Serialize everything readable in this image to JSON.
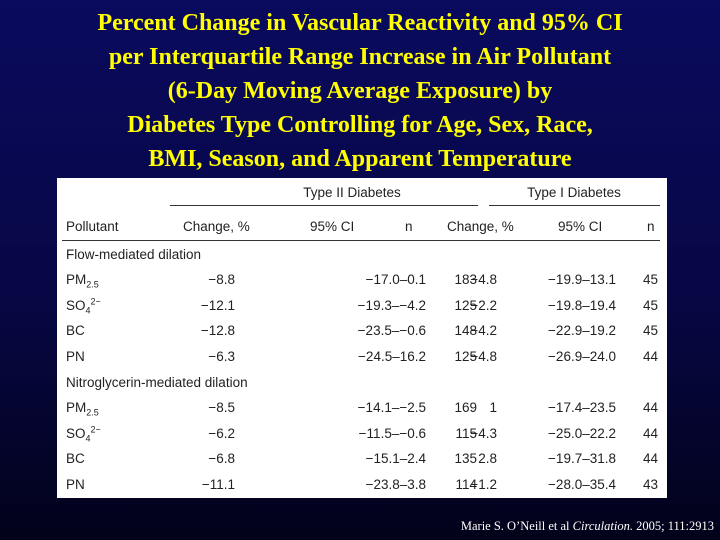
{
  "title_lines": [
    "Percent Change in Vascular Reactivity and 95% CI",
    "per Interquartile Range Increase in Air Pollutant",
    "(6-Day Moving Average Exposure) by",
    "Diabetes Type Controlling for Age, Sex, Race,",
    "BMI, Season, and Apparent Temperature"
  ],
  "table": {
    "group_headers": {
      "type2": "Type II Diabetes",
      "type1": "Type I Diabetes"
    },
    "columns": {
      "pollutant": "Pollutant",
      "change": "Change, %",
      "ci": "95% CI",
      "n": "n",
      "change2": "Change, %",
      "ci2": "95% CI",
      "n2": "n"
    },
    "sections": [
      {
        "label": "Flow-mediated dilation",
        "rows": [
          {
            "base": "PM",
            "sub": "2.5",
            "sup": "",
            "t2_change": "−8.8",
            "t2_ci": "−17.0–0.1",
            "t2_n": "183",
            "t1_change": "−4.8",
            "t1_ci": "−19.9–13.1",
            "t1_n": "45"
          },
          {
            "base": "SO",
            "sub": "4",
            "sup": "2−",
            "t2_change": "−12.1",
            "t2_ci": "−19.3–−4.2",
            "t2_n": "125",
            "t1_change": "−2.2",
            "t1_ci": "−19.8–19.4",
            "t1_n": "45"
          },
          {
            "base": "BC",
            "sub": "",
            "sup": "",
            "t2_change": "−12.8",
            "t2_ci": "−23.5–−0.6",
            "t2_n": "148",
            "t1_change": "−4.2",
            "t1_ci": "−22.9–19.2",
            "t1_n": "45"
          },
          {
            "base": "PN",
            "sub": "",
            "sup": "",
            "t2_change": "−6.3",
            "t2_ci": "−24.5–16.2",
            "t2_n": "125",
            "t1_change": "−4.8",
            "t1_ci": "−26.9–24.0",
            "t1_n": "44"
          }
        ]
      },
      {
        "label": "Nitroglycerin-mediated dilation",
        "rows": [
          {
            "base": "PM",
            "sub": "2.5",
            "sup": "",
            "t2_change": "−8.5",
            "t2_ci": "−14.1–−2.5",
            "t2_n": "169",
            "t1_change": "1",
            "t1_ci": "−17.4–23.5",
            "t1_n": "44"
          },
          {
            "base": "SO",
            "sub": "4",
            "sup": "2−",
            "t2_change": "−6.2",
            "t2_ci": "−11.5–−0.6",
            "t2_n": "115",
            "t1_change": "−4.3",
            "t1_ci": "−25.0–22.2",
            "t1_n": "44"
          },
          {
            "base": "BC",
            "sub": "",
            "sup": "",
            "t2_change": "−6.8",
            "t2_ci": "−15.1–2.4",
            "t2_n": "135",
            "t1_change": "2.8",
            "t1_ci": "−19.7–31.8",
            "t1_n": "44"
          },
          {
            "base": "PN",
            "sub": "",
            "sup": "",
            "t2_change": "−11.1",
            "t2_ci": "−23.8–3.8",
            "t2_n": "114",
            "t1_change": "−1.2",
            "t1_ci": "−28.0–35.4",
            "t1_n": "43"
          }
        ]
      }
    ]
  },
  "citation": {
    "authors": "Marie S. O’Neill et al",
    "journal": "Circulation.",
    "ref": "2005; 111:2913"
  }
}
